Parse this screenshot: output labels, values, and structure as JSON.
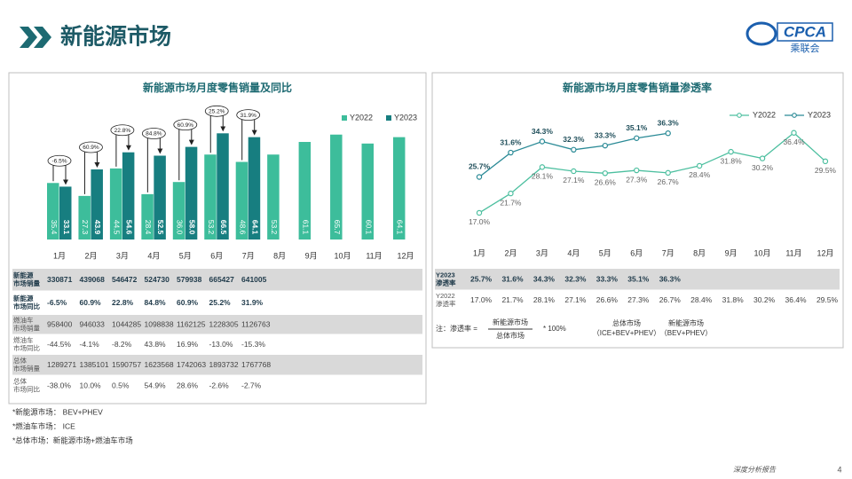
{
  "header": {
    "title": "新能源市场",
    "logo": "CPCA",
    "logo_sub": "乘联会"
  },
  "chart_data": [
    {
      "type": "bar",
      "title": "新能源市场月度零售销量及同比",
      "categories": [
        "1月",
        "2月",
        "3月",
        "4月",
        "5月",
        "6月",
        "7月",
        "8月",
        "9月",
        "10月",
        "11月",
        "12月"
      ],
      "series": [
        {
          "name": "Y2022",
          "color": "#3dbd9b",
          "values": [
            35.4,
            27.3,
            44.5,
            28.4,
            36.0,
            53.2,
            48.6,
            53.2,
            61.1,
            65.7,
            60.1,
            64.1
          ],
          "value_labels": [
            "35.4",
            "27.3",
            "44.5",
            "28.4",
            "36.0",
            "53.2",
            "48.6",
            "53.2",
            "61.1",
            "65.7",
            "60.1",
            "64.1"
          ]
        },
        {
          "name": "Y2023",
          "color": "#177e80",
          "values": [
            33.1,
            43.9,
            54.6,
            52.5,
            58.0,
            66.5,
            64.1,
            null,
            null,
            null,
            null,
            null
          ],
          "value_labels": [
            "33.1",
            "43.9",
            "54.6",
            "52.5",
            "58.0",
            "66.5",
            "64.1",
            null,
            null,
            null,
            null,
            null
          ]
        }
      ],
      "annotations": [
        "-6.5%",
        "60.9%",
        "22.8%",
        "84.8%",
        "60.9%",
        "25.2%",
        "31.9%"
      ],
      "ylim": [
        0,
        75
      ],
      "legend": "top-right"
    },
    {
      "type": "line",
      "title": "新能源市场月度零售销量渗透率",
      "categories": [
        "1月",
        "2月",
        "3月",
        "4月",
        "5月",
        "6月",
        "7月",
        "8月",
        "9月",
        "10月",
        "11月",
        "12月"
      ],
      "series": [
        {
          "name": "Y2022",
          "color": "#4cbf9f",
          "values": [
            17.0,
            21.7,
            28.1,
            27.1,
            26.6,
            27.3,
            26.7,
            28.4,
            31.8,
            30.2,
            36.4,
            29.5
          ],
          "value_labels": [
            "17.0%",
            "21.7%",
            "28.1%",
            "27.1%",
            "26.6%",
            "27.3%",
            "26.7%",
            "28.4%",
            "31.8%",
            "30.2%",
            "36.4%",
            "29.5%"
          ]
        },
        {
          "name": "Y2023",
          "color": "#2a8a96",
          "values": [
            25.7,
            31.6,
            34.3,
            32.3,
            33.3,
            35.1,
            36.3,
            null,
            null,
            null,
            null,
            null
          ],
          "value_labels": [
            "25.7%",
            "31.6%",
            "34.3%",
            "32.3%",
            "33.3%",
            "35.1%",
            "36.3%",
            null,
            null,
            null,
            null,
            null
          ]
        }
      ],
      "ylim": [
        10,
        40
      ],
      "legend": "top-right"
    }
  ],
  "tables": [
    {
      "rows": [
        {
          "label": "新能源市场销量",
          "cells": [
            "330871",
            "439068",
            "546472",
            "524730",
            "579938",
            "665427",
            "641005"
          ]
        },
        {
          "label": "新能源市场同比",
          "cells": [
            "-6.5%",
            "60.9%",
            "22.8%",
            "84.8%",
            "60.9%",
            "25.2%",
            "31.9%"
          ]
        },
        {
          "label": "燃油车市场销量",
          "cells": [
            "958400",
            "946033",
            "1044285",
            "1098838",
            "1162125",
            "1228305",
            "1126763"
          ]
        },
        {
          "label": "燃油车市场同比",
          "cells": [
            "-44.5%",
            "-4.1%",
            "-8.2%",
            "43.8%",
            "16.9%",
            "-13.0%",
            "-15.3%"
          ]
        },
        {
          "label": "总体市场销量",
          "cells": [
            "1289271",
            "1385101",
            "1590757",
            "1623568",
            "1742063",
            "1893732",
            "1767768"
          ]
        },
        {
          "label": "总体市场同比",
          "cells": [
            "-38.0%",
            "10.0%",
            "0.5%",
            "54.9%",
            "28.6%",
            "-2.6%",
            "-2.7%"
          ]
        }
      ]
    },
    {
      "rows": [
        {
          "label": "Y2023渗透率",
          "cells": [
            "25.7%",
            "31.6%",
            "34.3%",
            "32.3%",
            "33.3%",
            "35.1%",
            "36.3%"
          ]
        },
        {
          "label": "Y2022渗透率",
          "cells": [
            "17.0%",
            "21.7%",
            "28.1%",
            "27.1%",
            "26.6%",
            "27.3%",
            "26.7%",
            "28.4%",
            "31.8%",
            "30.2%",
            "36.4%",
            "29.5%"
          ]
        }
      ]
    }
  ],
  "formula": {
    "lead": "注：渗透率 =",
    "numerator": "新能源市场",
    "denominator": "总体市场",
    "factor": "* 100%",
    "def1_name": "总体市场",
    "def1_scope": "（ICE+BEV+PHEV）",
    "def2_name": "新能源市场",
    "def2_scope": "（BEV+PHEV）"
  },
  "notes": [
    "*新能源市场：  BEV+PHEV",
    "*燃油车市场：  ICE",
    "*总体市场：新能源市场+燃油车市场"
  ],
  "footer": {
    "report": "深度分析报告",
    "page": 4
  }
}
